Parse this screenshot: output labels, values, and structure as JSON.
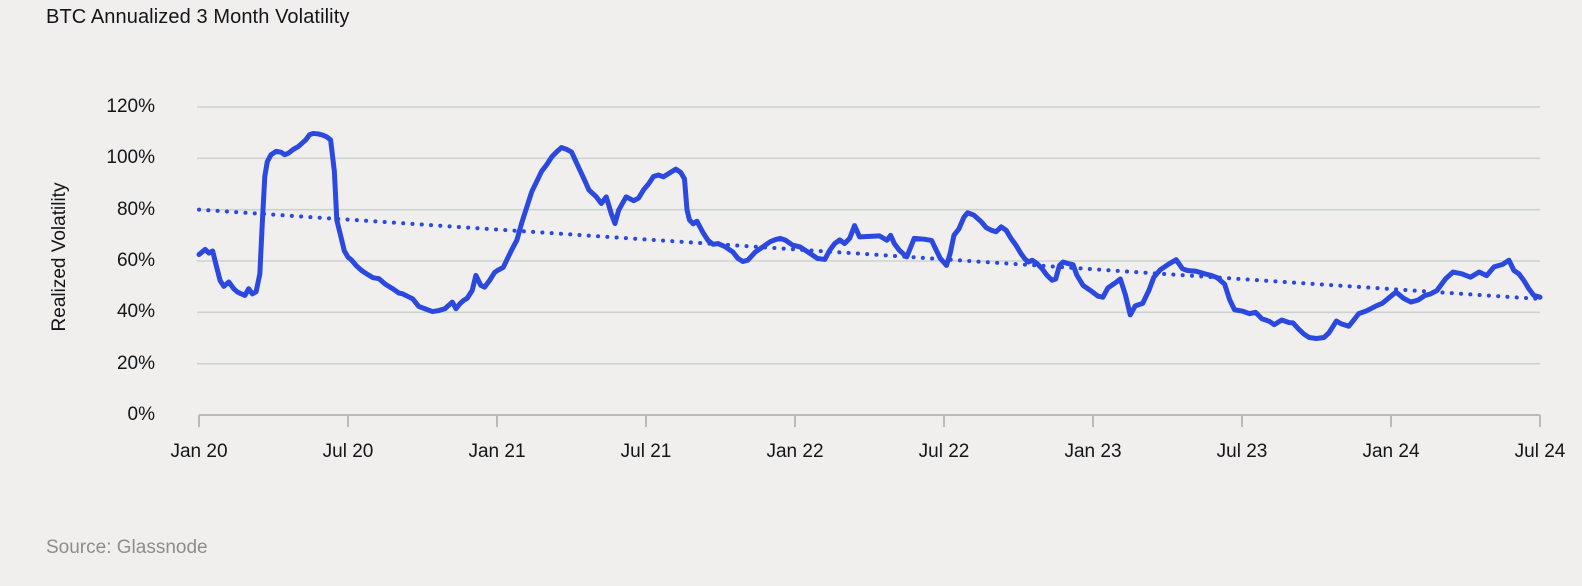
{
  "title": "BTC Annualized 3 Month Volatility",
  "source": "Source: Glassnode",
  "colors": {
    "background": "#f0efed",
    "line_blue": "#2b48df",
    "trend_blue": "#2b48df",
    "gridline": "#ccd3cf",
    "axis": "#b6bdb9",
    "text": "#141518",
    "source_text": "#8d8d8b"
  },
  "chart_data": {
    "type": "line",
    "title": "BTC Annualized 3 Month Volatility",
    "xlabel": "",
    "ylabel": "Realized Volatility",
    "x_unit": "months since Jan 2020",
    "xlim": [
      0,
      54
    ],
    "ylim": [
      0,
      120
    ],
    "grid": "horizontal",
    "legend": "none",
    "x_ticks": [
      {
        "m": 0,
        "label": "Jan 20"
      },
      {
        "m": 6,
        "label": "Jul 20"
      },
      {
        "m": 12,
        "label": "Jan 21"
      },
      {
        "m": 18,
        "label": "Jul 21"
      },
      {
        "m": 24,
        "label": "Jan 22"
      },
      {
        "m": 30,
        "label": "Jul 22"
      },
      {
        "m": 36,
        "label": "Jan 23"
      },
      {
        "m": 42,
        "label": "Jul 23"
      },
      {
        "m": 48,
        "label": "Jan 24"
      },
      {
        "m": 54,
        "label": "Jul 24"
      }
    ],
    "y_ticks": [
      {
        "v": 120,
        "label": "120%"
      },
      {
        "v": 100,
        "label": "100%"
      },
      {
        "v": 80,
        "label": "80%"
      },
      {
        "v": 60,
        "label": "60%"
      },
      {
        "v": 40,
        "label": "40%"
      },
      {
        "v": 20,
        "label": "20%"
      },
      {
        "v": 0,
        "label": "0%"
      }
    ],
    "series": [
      {
        "name": "BTC 3-month realized volatility (%)",
        "style": "solid",
        "color": "#2b48df",
        "points": [
          [
            0,
            62.5
          ],
          [
            0.25,
            64.5
          ],
          [
            0.4,
            63.1
          ],
          [
            0.55,
            63.9
          ],
          [
            0.7,
            58
          ],
          [
            0.85,
            52.4
          ],
          [
            1,
            50.1
          ],
          [
            1.2,
            51.8
          ],
          [
            1.4,
            49.2
          ],
          [
            1.55,
            47.9
          ],
          [
            1.7,
            47.2
          ],
          [
            1.85,
            46.6
          ],
          [
            2,
            49.2
          ],
          [
            2.15,
            47.2
          ],
          [
            2.3,
            48
          ],
          [
            2.45,
            55
          ],
          [
            2.55,
            75
          ],
          [
            2.65,
            93
          ],
          [
            2.75,
            98.7
          ],
          [
            2.9,
            101.4
          ],
          [
            3.1,
            102.7
          ],
          [
            3.3,
            102.4
          ],
          [
            3.45,
            101.4
          ],
          [
            3.6,
            102
          ],
          [
            3.8,
            103.5
          ],
          [
            4,
            104.6
          ],
          [
            4.15,
            105.9
          ],
          [
            4.3,
            107.2
          ],
          [
            4.45,
            109.2
          ],
          [
            4.6,
            109.7
          ],
          [
            4.8,
            109.5
          ],
          [
            5,
            109
          ],
          [
            5.15,
            108.3
          ],
          [
            5.3,
            107.2
          ],
          [
            5.45,
            95
          ],
          [
            5.55,
            75.9
          ],
          [
            5.7,
            70
          ],
          [
            5.85,
            64
          ],
          [
            6,
            61.5
          ],
          [
            6.15,
            60.3
          ],
          [
            6.35,
            58
          ],
          [
            6.55,
            56.3
          ],
          [
            6.75,
            55
          ],
          [
            7,
            53.5
          ],
          [
            7.25,
            53.1
          ],
          [
            7.5,
            51
          ],
          [
            7.8,
            49.2
          ],
          [
            8.05,
            47.5
          ],
          [
            8.2,
            47.2
          ],
          [
            8.45,
            46
          ],
          [
            8.6,
            45.3
          ],
          [
            8.85,
            42.3
          ],
          [
            9.1,
            41.4
          ],
          [
            9.4,
            40.3
          ],
          [
            9.65,
            40.7
          ],
          [
            9.9,
            41.4
          ],
          [
            10.2,
            44
          ],
          [
            10.35,
            41.4
          ],
          [
            10.5,
            43.3
          ],
          [
            10.65,
            44.6
          ],
          [
            10.8,
            45.5
          ],
          [
            11,
            48.5
          ],
          [
            11.15,
            54.4
          ],
          [
            11.35,
            50.5
          ],
          [
            11.5,
            49.8
          ],
          [
            11.7,
            52.4
          ],
          [
            11.9,
            55.5
          ],
          [
            12.05,
            56.5
          ],
          [
            12.25,
            57.5
          ],
          [
            12.4,
            60.5
          ],
          [
            12.6,
            64.5
          ],
          [
            12.8,
            68.1
          ],
          [
            13,
            75
          ],
          [
            13.2,
            81
          ],
          [
            13.4,
            87
          ],
          [
            13.6,
            91
          ],
          [
            13.8,
            95
          ],
          [
            14,
            97.5
          ],
          [
            14.2,
            100.5
          ],
          [
            14.4,
            102.5
          ],
          [
            14.6,
            104.2
          ],
          [
            14.8,
            103.5
          ],
          [
            15,
            102.5
          ],
          [
            15.3,
            96.2
          ],
          [
            15.55,
            91
          ],
          [
            15.7,
            87.7
          ],
          [
            16,
            85
          ],
          [
            16.2,
            82.4
          ],
          [
            16.4,
            85
          ],
          [
            16.6,
            78.5
          ],
          [
            16.75,
            74.6
          ],
          [
            16.9,
            79.8
          ],
          [
            17.2,
            85
          ],
          [
            17.5,
            83.5
          ],
          [
            17.7,
            84.5
          ],
          [
            17.9,
            87.7
          ],
          [
            18.1,
            90
          ],
          [
            18.3,
            92.9
          ],
          [
            18.5,
            93.5
          ],
          [
            18.7,
            92.8
          ],
          [
            18.9,
            94
          ],
          [
            19.2,
            95.8
          ],
          [
            19.4,
            94.5
          ],
          [
            19.55,
            92
          ],
          [
            19.65,
            80
          ],
          [
            19.75,
            76
          ],
          [
            19.9,
            74.5
          ],
          [
            20.05,
            75.5
          ],
          [
            20.3,
            71
          ],
          [
            20.5,
            68
          ],
          [
            20.7,
            66.5
          ],
          [
            20.9,
            66.8
          ],
          [
            21.2,
            65.5
          ],
          [
            21.5,
            63.5
          ],
          [
            21.7,
            61
          ],
          [
            21.9,
            59.8
          ],
          [
            22.1,
            60.3
          ],
          [
            22.4,
            63.5
          ],
          [
            22.6,
            64.8
          ],
          [
            23,
            67.5
          ],
          [
            23.2,
            68.3
          ],
          [
            23.4,
            68.8
          ],
          [
            23.6,
            68.2
          ],
          [
            23.9,
            66.2
          ],
          [
            24.2,
            65.5
          ],
          [
            24.6,
            63
          ],
          [
            24.9,
            61
          ],
          [
            25.2,
            60.6
          ],
          [
            25.4,
            64.2
          ],
          [
            25.6,
            66.8
          ],
          [
            25.8,
            68.2
          ],
          [
            26,
            66.8
          ],
          [
            26.2,
            68.8
          ],
          [
            26.4,
            73.8
          ],
          [
            26.6,
            69.4
          ],
          [
            27,
            69.6
          ],
          [
            27.4,
            69.8
          ],
          [
            27.7,
            68.1
          ],
          [
            27.85,
            70
          ],
          [
            28,
            66.8
          ],
          [
            28.2,
            64.2
          ],
          [
            28.5,
            61.6
          ],
          [
            28.8,
            68.8
          ],
          [
            29.2,
            68.5
          ],
          [
            29.5,
            68
          ],
          [
            29.7,
            64
          ],
          [
            29.85,
            61
          ],
          [
            30.1,
            58.3
          ],
          [
            30.25,
            63
          ],
          [
            30.4,
            70
          ],
          [
            30.6,
            72.5
          ],
          [
            30.8,
            77
          ],
          [
            30.95,
            78.8
          ],
          [
            31.2,
            77.9
          ],
          [
            31.5,
            75.3
          ],
          [
            31.7,
            73
          ],
          [
            31.9,
            72
          ],
          [
            32.1,
            71.4
          ],
          [
            32.3,
            73.3
          ],
          [
            32.5,
            72
          ],
          [
            32.7,
            68.8
          ],
          [
            32.9,
            66.1
          ],
          [
            33.1,
            62.9
          ],
          [
            33.25,
            60.9
          ],
          [
            33.4,
            59.6
          ],
          [
            33.55,
            60.3
          ],
          [
            33.75,
            59
          ],
          [
            33.95,
            57
          ],
          [
            34.15,
            54.4
          ],
          [
            34.35,
            52.5
          ],
          [
            34.5,
            53
          ],
          [
            34.65,
            58.3
          ],
          [
            34.8,
            59.6
          ],
          [
            35,
            59
          ],
          [
            35.2,
            58.5
          ],
          [
            35.35,
            54.5
          ],
          [
            35.6,
            50.5
          ],
          [
            35.9,
            48.5
          ],
          [
            36.2,
            46.3
          ],
          [
            36.4,
            45.9
          ],
          [
            36.6,
            49.5
          ],
          [
            36.9,
            51.5
          ],
          [
            37.1,
            53
          ],
          [
            37.3,
            47
          ],
          [
            37.5,
            39
          ],
          [
            37.7,
            42.5
          ],
          [
            38,
            43.5
          ],
          [
            38.25,
            48.5
          ],
          [
            38.45,
            53.7
          ],
          [
            38.7,
            56.5
          ],
          [
            39.05,
            58.8
          ],
          [
            39.35,
            60.5
          ],
          [
            39.6,
            57
          ],
          [
            39.8,
            56.3
          ],
          [
            40.15,
            56
          ],
          [
            40.5,
            55
          ],
          [
            40.75,
            54.4
          ],
          [
            41,
            53.5
          ],
          [
            41.3,
            51
          ],
          [
            41.5,
            45
          ],
          [
            41.7,
            41
          ],
          [
            42,
            40.5
          ],
          [
            42.3,
            39.5
          ],
          [
            42.55,
            40
          ],
          [
            42.8,
            37.5
          ],
          [
            43.1,
            36.5
          ],
          [
            43.3,
            35.2
          ],
          [
            43.6,
            37
          ],
          [
            43.9,
            36
          ],
          [
            44.05,
            35.9
          ],
          [
            44.3,
            33.3
          ],
          [
            44.5,
            31.5
          ],
          [
            44.7,
            30.2
          ],
          [
            45,
            29.8
          ],
          [
            45.3,
            30.2
          ],
          [
            45.5,
            32
          ],
          [
            45.8,
            36.6
          ],
          [
            46,
            35.5
          ],
          [
            46.3,
            34.6
          ],
          [
            46.5,
            37
          ],
          [
            46.7,
            39.5
          ],
          [
            47,
            40.5
          ],
          [
            47.4,
            42.5
          ],
          [
            47.65,
            43.5
          ],
          [
            47.9,
            45.5
          ],
          [
            48.2,
            47.9
          ],
          [
            48.5,
            45.5
          ],
          [
            48.8,
            44
          ],
          [
            49.1,
            44.8
          ],
          [
            49.35,
            46.5
          ],
          [
            49.6,
            47.2
          ],
          [
            49.85,
            48.5
          ],
          [
            50.2,
            53.1
          ],
          [
            50.5,
            55.7
          ],
          [
            50.85,
            55
          ],
          [
            51.2,
            53.7
          ],
          [
            51.55,
            55.7
          ],
          [
            51.85,
            54.3
          ],
          [
            52.15,
            57.7
          ],
          [
            52.5,
            58.7
          ],
          [
            52.75,
            60.3
          ],
          [
            52.95,
            56.3
          ],
          [
            53.15,
            55
          ],
          [
            53.35,
            52.4
          ],
          [
            53.55,
            49.2
          ],
          [
            53.75,
            46.6
          ],
          [
            54,
            45.9
          ]
        ]
      },
      {
        "name": "linear trend (dotted)",
        "style": "dotted",
        "color": "#2b48df",
        "points": [
          [
            0,
            80
          ],
          [
            54,
            45.2
          ]
        ]
      }
    ]
  }
}
